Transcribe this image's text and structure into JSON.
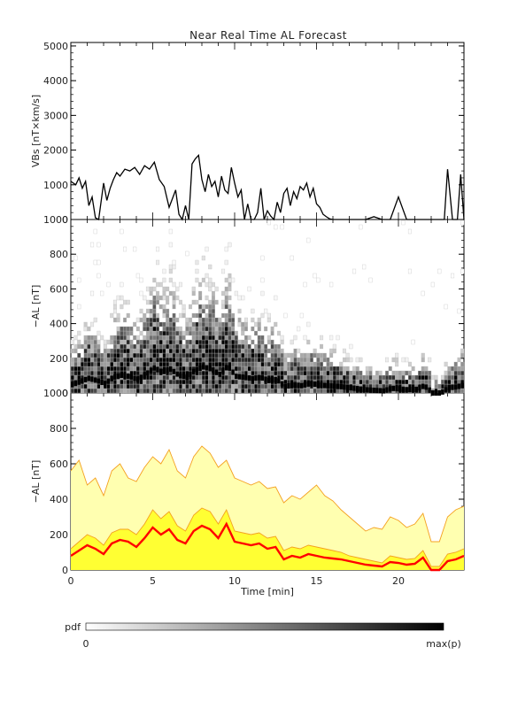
{
  "title": "Near Real Time AL Forecast",
  "colors": {
    "axis": "#000000",
    "pdf_fill": "#ffff33",
    "pdf_light": "#ffffb0",
    "envelope": "#f4a020",
    "median": "#ff0000"
  },
  "chart_data": [
    {
      "type": "line",
      "panel": "vbs",
      "ylabel": "VBs [nT×km/s]",
      "ylim": [
        0,
        5100
      ],
      "xlim": [
        0,
        24
      ],
      "yticks": [
        0,
        1000,
        2000,
        3000,
        4000,
        5000
      ],
      "x": [
        0,
        0.3,
        0.5,
        0.7,
        0.9,
        1.1,
        1.3,
        1.5,
        1.7,
        2,
        2.2,
        2.4,
        2.6,
        2.8,
        3,
        3.3,
        3.6,
        3.9,
        4.2,
        4.5,
        4.8,
        5.1,
        5.4,
        5.7,
        6,
        6.2,
        6.4,
        6.6,
        6.8,
        7,
        7.2,
        7.4,
        7.6,
        7.8,
        8,
        8.2,
        8.4,
        8.6,
        8.8,
        9,
        9.2,
        9.4,
        9.6,
        9.8,
        10,
        10.2,
        10.4,
        10.6,
        10.8,
        11,
        11.2,
        11.4,
        11.6,
        11.8,
        12,
        12.2,
        12.4,
        12.6,
        12.8,
        13,
        13.2,
        13.4,
        13.6,
        13.8,
        14,
        14.2,
        14.4,
        14.6,
        14.8,
        15,
        15.2,
        15.4,
        15.6,
        15.8,
        16,
        16.2,
        16.4,
        16.6,
        16.8,
        17,
        17.5,
        18,
        18.5,
        19,
        19.5,
        20,
        20.5,
        21,
        21.5,
        22,
        22.5,
        22.8,
        23,
        23.3,
        23.6,
        23.8,
        24
      ],
      "values": [
        1100,
        1000,
        1200,
        900,
        1100,
        400,
        650,
        50,
        0,
        1050,
        550,
        900,
        1150,
        1350,
        1250,
        1450,
        1400,
        1500,
        1300,
        1550,
        1450,
        1650,
        1150,
        950,
        350,
        600,
        850,
        150,
        0,
        400,
        0,
        1600,
        1750,
        1850,
        1150,
        800,
        1300,
        950,
        1100,
        650,
        1250,
        850,
        750,
        1500,
        1050,
        650,
        850,
        0,
        450,
        0,
        0,
        200,
        900,
        0,
        250,
        100,
        0,
        500,
        200,
        750,
        900,
        400,
        800,
        600,
        950,
        850,
        1050,
        650,
        900,
        450,
        350,
        150,
        80,
        20,
        0,
        0,
        0,
        0,
        0,
        0,
        0,
        0,
        80,
        0,
        0,
        650,
        0,
        0,
        0,
        0,
        0,
        0,
        1450,
        0,
        0,
        1300,
        0
      ],
      "series": []
    },
    {
      "type": "heatmap",
      "panel": "pdf",
      "ylabel": "−AL [nT]",
      "ylim": [
        0,
        1000
      ],
      "xlim": [
        0,
        24
      ],
      "yticks": [
        0,
        200,
        400,
        600,
        800,
        1000
      ],
      "series": []
    },
    {
      "type": "area",
      "panel": "forecast",
      "ylabel": "−AL [nT]",
      "xlabel": "Time [min]",
      "ylim": [
        0,
        1000
      ],
      "xlim": [
        0,
        24
      ],
      "yticks": [
        0,
        200,
        400,
        600,
        800,
        1000
      ],
      "xticks": [
        0,
        5,
        10,
        15,
        20
      ],
      "x": [
        0,
        0.5,
        1,
        1.5,
        2,
        2.5,
        3,
        3.5,
        4,
        4.5,
        5,
        5.5,
        6,
        6.5,
        7,
        7.5,
        8,
        8.5,
        9,
        9.5,
        10,
        10.5,
        11,
        11.5,
        12,
        12.5,
        13,
        13.5,
        14,
        14.5,
        15,
        15.5,
        16,
        16.5,
        17,
        17.5,
        18,
        18.5,
        19,
        19.5,
        20,
        20.5,
        21,
        21.5,
        22,
        22.5,
        23,
        23.5,
        24
      ],
      "series": [
        {
          "name": "",
          "role": "median",
          "values": [
            80,
            110,
            140,
            120,
            90,
            150,
            170,
            160,
            130,
            180,
            240,
            200,
            230,
            170,
            150,
            220,
            250,
            230,
            180,
            260,
            160,
            150,
            140,
            150,
            120,
            130,
            60,
            80,
            70,
            90,
            80,
            70,
            65,
            60,
            50,
            40,
            30,
            25,
            20,
            45,
            40,
            30,
            35,
            70,
            0,
            0,
            50,
            60,
            80
          ]
        },
        {
          "name": "",
          "role": "lower",
          "values": [
            120,
            160,
            200,
            180,
            140,
            210,
            230,
            230,
            200,
            260,
            340,
            290,
            330,
            250,
            220,
            310,
            350,
            330,
            260,
            340,
            220,
            210,
            200,
            210,
            180,
            190,
            110,
            130,
            120,
            140,
            130,
            120,
            110,
            100,
            80,
            70,
            60,
            50,
            40,
            80,
            70,
            60,
            65,
            110,
            20,
            20,
            90,
            100,
            120
          ]
        },
        {
          "name": "",
          "role": "upper",
          "values": [
            560,
            620,
            480,
            520,
            420,
            560,
            600,
            520,
            500,
            580,
            640,
            600,
            680,
            560,
            520,
            640,
            700,
            660,
            580,
            620,
            520,
            500,
            480,
            500,
            460,
            470,
            380,
            420,
            400,
            440,
            480,
            420,
            390,
            340,
            300,
            260,
            220,
            240,
            230,
            300,
            280,
            240,
            260,
            320,
            160,
            160,
            300,
            340,
            360
          ]
        }
      ]
    }
  ],
  "colorbar": {
    "label": "pdf",
    "min_label": "0",
    "max_label": "max(p)"
  }
}
